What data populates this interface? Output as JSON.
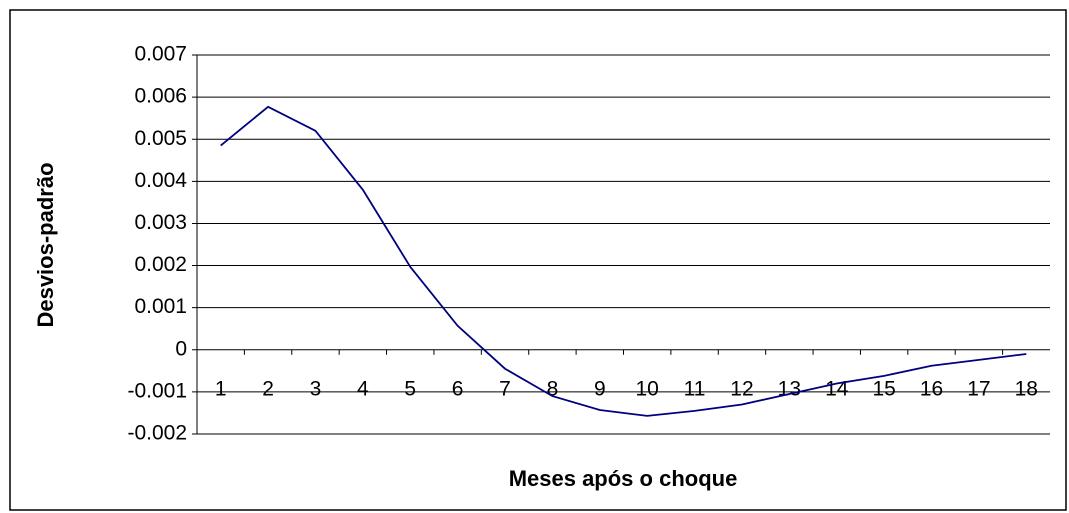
{
  "chart_data": {
    "type": "line",
    "y_label": "Desvios-padrão",
    "x_label": "Meses após o choque",
    "categories": [
      "1",
      "2",
      "3",
      "4",
      "5",
      "6",
      "7",
      "8",
      "9",
      "10",
      "11",
      "12",
      "13",
      "14",
      "15",
      "16",
      "17",
      "18"
    ],
    "series": [
      {
        "color": "#000080",
        "values": [
          0.00485,
          0.00577,
          0.0052,
          0.0038,
          0.00197,
          0.00057,
          -0.00045,
          -0.0011,
          -0.00143,
          -0.00157,
          -0.00145,
          -0.0013,
          -0.00105,
          -0.0008,
          -0.00062,
          -0.00038,
          -0.00024,
          -0.0001
        ]
      }
    ],
    "ylim": [
      -0.002,
      0.007
    ],
    "yticks": [
      -0.002,
      -0.001,
      0,
      0.001,
      0.002,
      0.003,
      0.004,
      0.005,
      0.006,
      0.007
    ],
    "grid": true
  }
}
